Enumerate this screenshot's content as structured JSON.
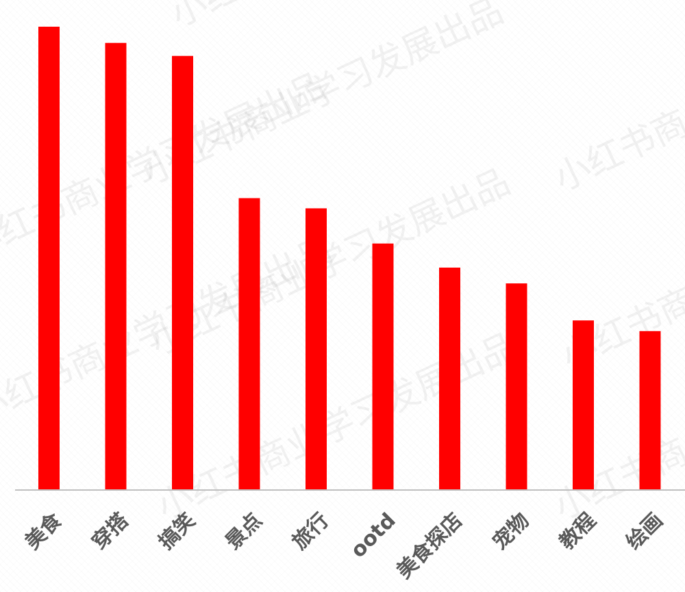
{
  "colors": {
    "bar": "#ff0000",
    "axis": "#bfbfbf",
    "tick_label": "#595959",
    "background": "#ffffff"
  },
  "watermark": {
    "text": "小红书商业学习发展出品"
  },
  "chart_data": {
    "type": "bar",
    "categories": [
      "美食",
      "穿搭",
      "搞笑",
      "景点",
      "旅行",
      "ootd",
      "美食探店",
      "宠物",
      "教程",
      "绘画"
    ],
    "values": [
      100,
      96.5,
      93.7,
      63,
      60.8,
      53.2,
      48,
      44.6,
      36.6,
      34.3
    ],
    "title": "",
    "xlabel": "",
    "ylabel": "",
    "ylim": [
      0,
      100
    ],
    "grid": false,
    "legend": "none",
    "tick_label_rotation": -45
  }
}
